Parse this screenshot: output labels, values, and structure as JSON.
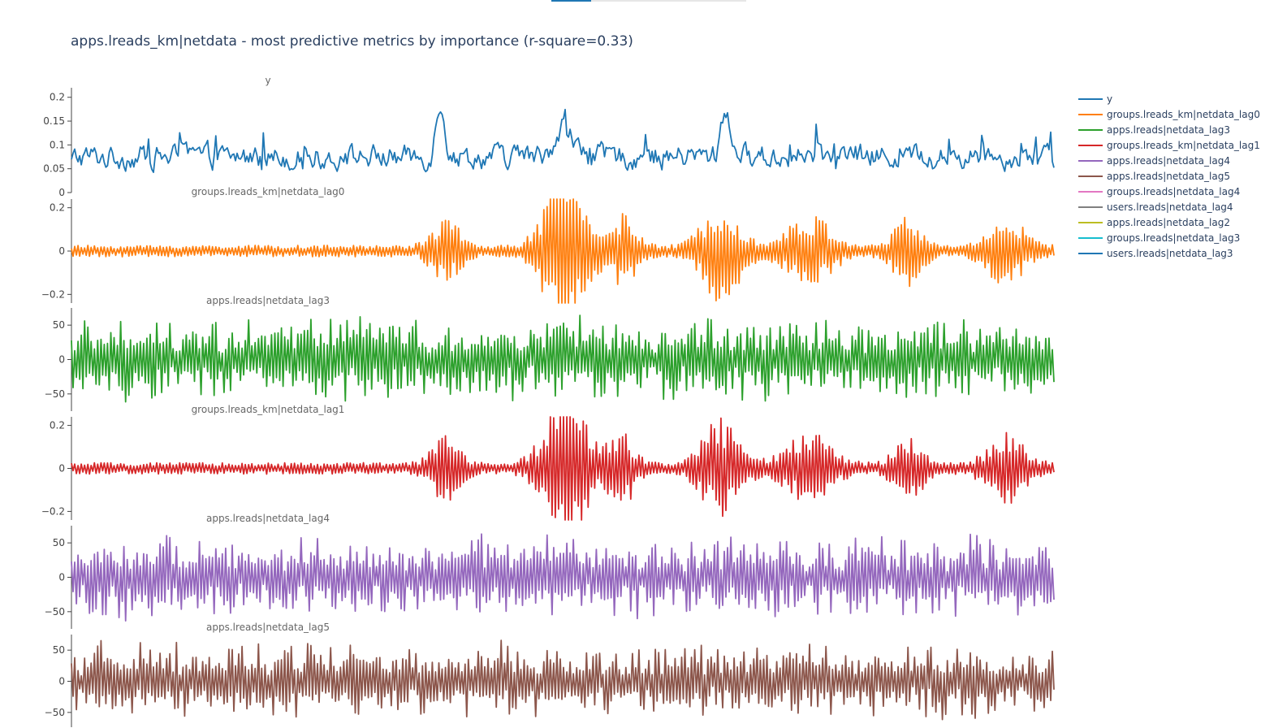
{
  "chart_data": {
    "type": "line",
    "title": "apps.lreads_km|netdata - most predictive metrics by importance (r-square=0.33)",
    "x_points": 600,
    "grid": false,
    "legend_position": "right",
    "panels": [
      {
        "name": "y",
        "color": "#1f77b4",
        "ylim": [
          0,
          0.22
        ],
        "ticks": [
          0,
          0.05,
          0.1,
          0.15,
          0.2
        ],
        "tick_labels": [
          "0",
          "0.05",
          "0.1",
          "0.15",
          "0.2"
        ]
      },
      {
        "name": "groups.lreads_km|netdata_lag0",
        "color": "#ff7f0e",
        "ylim": [
          -0.24,
          0.24
        ],
        "ticks": [
          -0.2,
          0,
          0.2
        ],
        "tick_labels": [
          "−0.2",
          "0",
          "0.2"
        ]
      },
      {
        "name": "apps.lreads|netdata_lag3",
        "color": "#2ca02c",
        "ylim": [
          -75,
          75
        ],
        "ticks": [
          -50,
          0,
          50
        ],
        "tick_labels": [
          "−50",
          "0",
          "50"
        ]
      },
      {
        "name": "groups.lreads_km|netdata_lag1",
        "color": "#d62728",
        "ylim": [
          -0.24,
          0.24
        ],
        "ticks": [
          -0.2,
          0,
          0.2
        ],
        "tick_labels": [
          "−0.2",
          "0",
          "0.2"
        ]
      },
      {
        "name": "apps.lreads|netdata_lag4",
        "color": "#9467bd",
        "ylim": [
          -75,
          75
        ],
        "ticks": [
          -50,
          0,
          50
        ],
        "tick_labels": [
          "−50",
          "0",
          "50"
        ]
      },
      {
        "name": "apps.lreads|netdata_lag5",
        "color": "#8c564b",
        "ylim": [
          -75,
          75
        ],
        "ticks": [
          -50,
          0,
          50
        ],
        "tick_labels": [
          "−50",
          "0",
          "50"
        ]
      }
    ],
    "legend": [
      {
        "name": "y",
        "color": "#1f77b4"
      },
      {
        "name": "groups.lreads_km|netdata_lag0",
        "color": "#ff7f0e"
      },
      {
        "name": "apps.lreads|netdata_lag3",
        "color": "#2ca02c"
      },
      {
        "name": "groups.lreads_km|netdata_lag1",
        "color": "#d62728"
      },
      {
        "name": "apps.lreads|netdata_lag4",
        "color": "#9467bd"
      },
      {
        "name": "apps.lreads|netdata_lag5",
        "color": "#8c564b"
      },
      {
        "name": "groups.lreads|netdata_lag4",
        "color": "#e377c2"
      },
      {
        "name": "users.lreads|netdata_lag4",
        "color": "#7f7f7f"
      },
      {
        "name": "apps.lreads|netdata_lag2",
        "color": "#bcbd22"
      },
      {
        "name": "groups.lreads|netdata_lag3",
        "color": "#17becf"
      },
      {
        "name": "users.lreads|netdata_lag3",
        "color": "#1f77b4"
      }
    ]
  }
}
